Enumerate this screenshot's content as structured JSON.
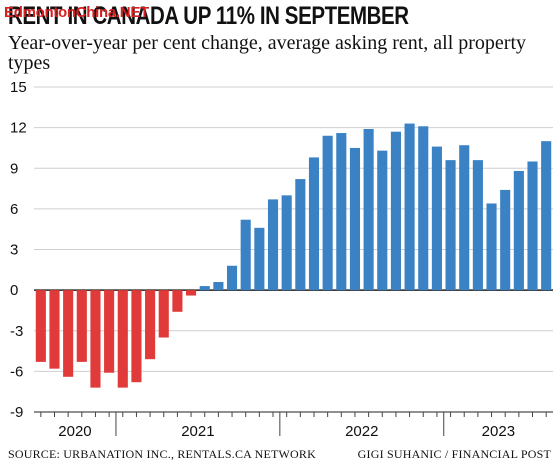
{
  "watermark": "EdmontonChina.NET",
  "chart_data": {
    "type": "bar",
    "title": "RENT IN CANADA UP 11% IN SEPTEMBER",
    "subtitle": "Year-over-year per cent change, average asking rent, all property types",
    "xlabel": "",
    "ylabel": "",
    "ylim": [
      -9,
      15
    ],
    "yticks": [
      -9,
      -6,
      -3,
      0,
      3,
      6,
      9,
      12,
      15
    ],
    "ytick_labels": [
      "-9",
      "-6",
      "-3",
      "0",
      "3",
      "6",
      "9",
      "12",
      "15"
    ],
    "year_labels": [
      "2020",
      "2021",
      "2022",
      "2023"
    ],
    "grid": true,
    "values": [
      -5.3,
      -5.8,
      -6.4,
      -5.3,
      -7.2,
      -6.1,
      -7.2,
      -6.8,
      -5.1,
      -3.5,
      -1.6,
      -0.4,
      0.3,
      0.6,
      1.8,
      5.2,
      4.6,
      6.7,
      7.0,
      8.2,
      9.8,
      11.4,
      11.6,
      10.5,
      11.9,
      10.3,
      11.7,
      12.3,
      12.1,
      10.6,
      9.6,
      10.7,
      9.6,
      6.4,
      7.4,
      8.8,
      9.5,
      11.0
    ],
    "colors": {
      "negative": "#e03a3a",
      "positive": "#3b82c4"
    }
  },
  "footer": {
    "source": "SOURCE: URBANATION INC., RENTALS.CA NETWORK",
    "credit": "GIGI SUHANIC / FINANCIAL POST"
  }
}
